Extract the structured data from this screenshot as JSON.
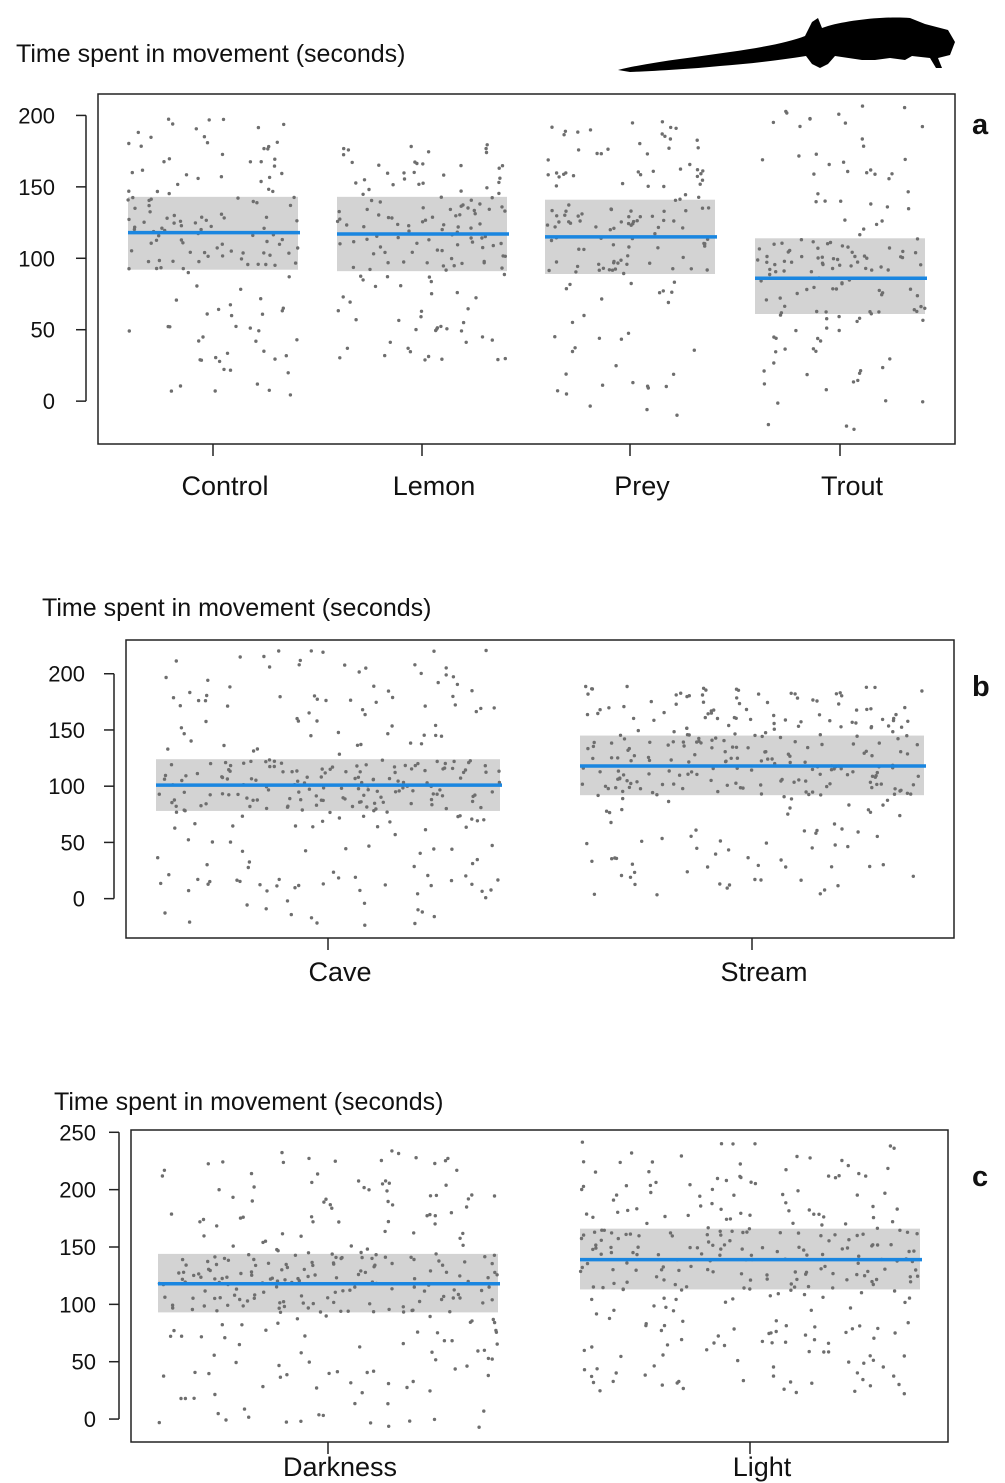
{
  "figure": {
    "silhouette_icon": "salamander-silhouette",
    "colors": {
      "point": "#6e6e6e",
      "mean_line": "#1a86e0",
      "ci_band": "#d3d3d3",
      "axis": "#222222",
      "silhouette": "#000000"
    }
  },
  "chart_data": [
    {
      "type": "scatter",
      "panel_label": "a",
      "ylabel": "Time spent in movement (seconds)",
      "categories": [
        "Control",
        "Lemon",
        "Prey",
        "Trout"
      ],
      "ylim": [
        -30,
        215
      ],
      "yticks": [
        0,
        50,
        100,
        150,
        200
      ],
      "grid": false,
      "groups": [
        {
          "name": "Control",
          "mean": 118,
          "band": [
            92,
            143
          ],
          "min": 4,
          "max": 200,
          "n": 150
        },
        {
          "name": "Lemon",
          "mean": 117,
          "band": [
            91,
            143
          ],
          "min": 27,
          "max": 180,
          "n": 150
        },
        {
          "name": "Prey",
          "mean": 115,
          "band": [
            89,
            141
          ],
          "min": -10,
          "max": 196,
          "n": 150
        },
        {
          "name": "Trout",
          "mean": 86,
          "band": [
            61,
            114
          ],
          "min": -20,
          "max": 207,
          "n": 150
        }
      ]
    },
    {
      "type": "scatter",
      "panel_label": "b",
      "ylabel": "Time spent in movement (seconds)",
      "categories": [
        "Cave",
        "Stream"
      ],
      "ylim": [
        -35,
        230
      ],
      "yticks": [
        0,
        50,
        100,
        150,
        200
      ],
      "grid": false,
      "groups": [
        {
          "name": "Cave",
          "mean": 101,
          "band": [
            78,
            124
          ],
          "min": -26,
          "max": 221,
          "n": 300
        },
        {
          "name": "Stream",
          "mean": 118,
          "band": [
            92,
            145
          ],
          "min": 3,
          "max": 190,
          "n": 300
        }
      ]
    },
    {
      "type": "scatter",
      "panel_label": "c",
      "ylabel": "Time spent in movement (seconds)",
      "categories": [
        "Darkness",
        "Light"
      ],
      "ylim": [
        -20,
        252
      ],
      "yticks": [
        0,
        50,
        100,
        150,
        200,
        250
      ],
      "grid": false,
      "groups": [
        {
          "name": "Darkness",
          "mean": 118,
          "band": [
            93,
            144
          ],
          "min": -10,
          "max": 236,
          "n": 300
        },
        {
          "name": "Light",
          "mean": 139,
          "band": [
            113,
            166
          ],
          "min": 22,
          "max": 242,
          "n": 300
        }
      ]
    }
  ]
}
